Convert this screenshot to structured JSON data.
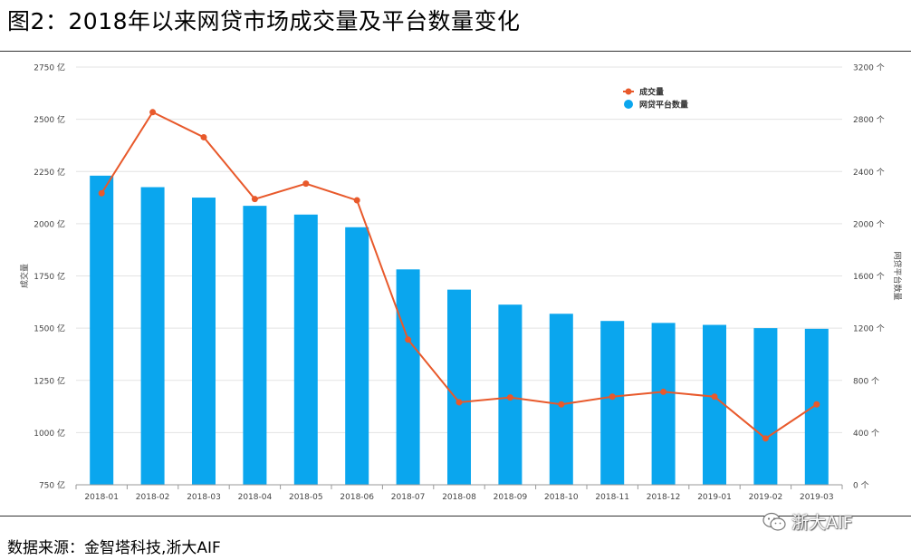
{
  "figure": {
    "title": "图2：2018年以来网贷市场成交量及平台数量变化",
    "source": "数据来源：金智塔科技,浙大AIF",
    "watermark": "浙大AIF"
  },
  "chart_data": {
    "type": "bar",
    "categories": [
      "2018-01",
      "2018-02",
      "2018-03",
      "2018-04",
      "2018-05",
      "2018-06",
      "2018-07",
      "2018-08",
      "2018-09",
      "2018-10",
      "2018-11",
      "2018-12",
      "2019-01",
      "2019-02",
      "2019-03"
    ],
    "series": [
      {
        "name": "网贷平台数量",
        "type": "bar",
        "axis": "right",
        "color": "#0aa6ee",
        "values": [
          2368,
          2280,
          2200,
          2137,
          2070,
          1973,
          1650,
          1495,
          1380,
          1310,
          1255,
          1240,
          1225,
          1200,
          1195
        ]
      },
      {
        "name": "成交量",
        "type": "line",
        "axis": "left",
        "color": "#e8592b",
        "values": [
          2146,
          2534,
          2414,
          2118,
          2192,
          2112,
          1445,
          1145,
          1168,
          1135,
          1172,
          1195,
          1172,
          972,
          1135
        ]
      }
    ],
    "y_left": {
      "label": "成交量",
      "range": [
        750,
        2750
      ],
      "ticks": [
        750,
        1000,
        1250,
        1500,
        1750,
        2000,
        2250,
        2500,
        2750
      ],
      "tick_labels": [
        "750 亿",
        "1000 亿",
        "1250 亿",
        "1500 亿",
        "1750 亿",
        "2000 亿",
        "2250 亿",
        "2500 亿",
        "2750 亿"
      ]
    },
    "y_right": {
      "label": "网贷平台数量",
      "range": [
        0,
        3200
      ],
      "ticks": [
        0,
        400,
        800,
        1200,
        1600,
        2000,
        2400,
        2800,
        3200
      ],
      "tick_labels": [
        "0 个",
        "400 个",
        "800 个",
        "1200 个",
        "1600 个",
        "2000 个",
        "2400 个",
        "2800 个",
        "3200 个"
      ]
    },
    "grid": true,
    "legend_position": "top-right"
  }
}
